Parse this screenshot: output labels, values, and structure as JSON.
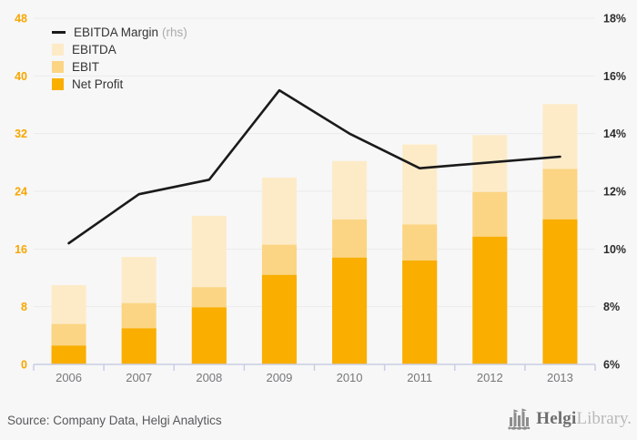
{
  "chart_data": {
    "type": "combo-bar-line",
    "title": "",
    "categories": [
      "2006",
      "2007",
      "2008",
      "2009",
      "2010",
      "2011",
      "2012",
      "2013"
    ],
    "bar_series": [
      {
        "name": "EBITDA",
        "color": "#FDEBC8",
        "values": [
          11.0,
          14.9,
          20.6,
          25.9,
          28.2,
          30.5,
          31.8,
          36.1
        ]
      },
      {
        "name": "EBIT",
        "color": "#FBD583",
        "values": [
          5.6,
          8.5,
          10.7,
          16.6,
          20.1,
          19.4,
          23.9,
          27.1
        ]
      },
      {
        "name": "Net Profit",
        "color": "#F9AE00",
        "values": [
          2.6,
          5.0,
          7.9,
          12.4,
          14.8,
          14.4,
          17.7,
          20.1
        ]
      }
    ],
    "line_series": {
      "name": "EBITDA Margin",
      "rhs_note": "(rhs)",
      "axis": "right",
      "color": "#1A1A1A",
      "values_pct": [
        10.2,
        11.9,
        12.4,
        15.5,
        14.0,
        12.8,
        13.0,
        13.2
      ]
    },
    "left_axis": {
      "ticks": [
        "0",
        "8",
        "16",
        "24",
        "32",
        "40",
        "48"
      ],
      "min": 0,
      "max": 48,
      "label_color": "#F7A600"
    },
    "right_axis": {
      "ticks": [
        "6%",
        "8%",
        "10%",
        "12%",
        "14%",
        "16%",
        "18%"
      ],
      "min": 6,
      "max": 18,
      "label_color": "#2B2B2B"
    },
    "legend_position": "top-left",
    "grid": true,
    "grid_color": "#EBEBEB",
    "axis_line_color": "#C9CEE4",
    "x_label_color": "#76787A"
  },
  "footer": {
    "source": "Source: Company Data, Helgi Analytics",
    "brand_name": "Helgi",
    "brand_suffix": "Library."
  }
}
